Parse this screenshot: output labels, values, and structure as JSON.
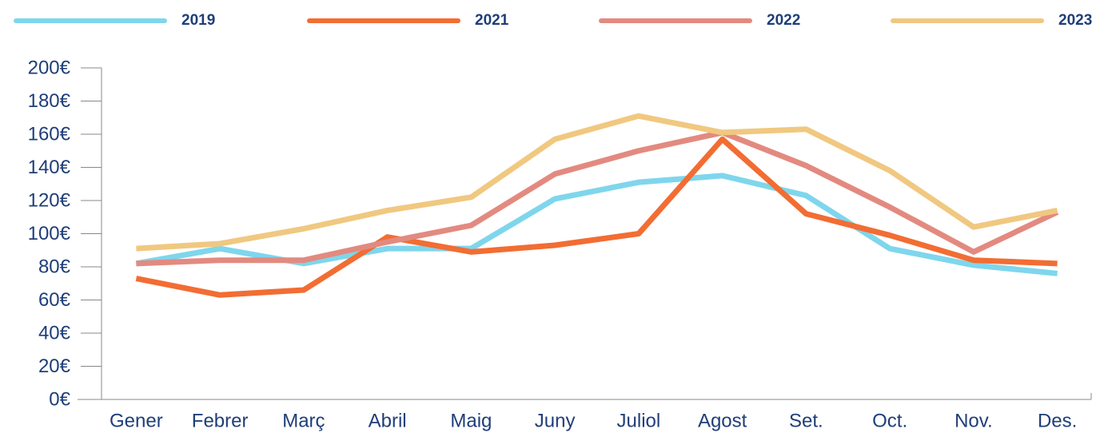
{
  "chart_data": {
    "type": "line",
    "categories": [
      "Gener",
      "Febrer",
      "Març",
      "Abril",
      "Maig",
      "Juny",
      "Juliol",
      "Agost",
      "Set.",
      "Oct.",
      "Nov.",
      "Des."
    ],
    "series": [
      {
        "name": "2019",
        "color": "#7fd6ec",
        "values": [
          82,
          91,
          82,
          91,
          91,
          121,
          131,
          135,
          123,
          91,
          81,
          76
        ]
      },
      {
        "name": "2021",
        "color": "#f26d33",
        "values": [
          73,
          63,
          66,
          98,
          89,
          93,
          100,
          157,
          112,
          99,
          84,
          82
        ]
      },
      {
        "name": "2022",
        "color": "#e38a80",
        "values": [
          82,
          84,
          84,
          95,
          105,
          136,
          150,
          161,
          141,
          116,
          89,
          113
        ]
      },
      {
        "name": "2023",
        "color": "#f0c880",
        "values": [
          91,
          94,
          103,
          114,
          122,
          157,
          171,
          161,
          163,
          138,
          104,
          114
        ]
      }
    ],
    "ylim": [
      0,
      200
    ],
    "yticks": [
      {
        "value": 0,
        "label": "0€"
      },
      {
        "value": 20,
        "label": "20€"
      },
      {
        "value": 40,
        "label": "40€"
      },
      {
        "value": 60,
        "label": "60€"
      },
      {
        "value": 80,
        "label": "80€"
      },
      {
        "value": 100,
        "label": "100€"
      },
      {
        "value": 120,
        "label": "120€"
      },
      {
        "value": 140,
        "label": "140€"
      },
      {
        "value": 160,
        "label": "160€"
      },
      {
        "value": 180,
        "label": "180€"
      },
      {
        "value": 200,
        "label": "200€"
      }
    ],
    "legend": "top"
  }
}
